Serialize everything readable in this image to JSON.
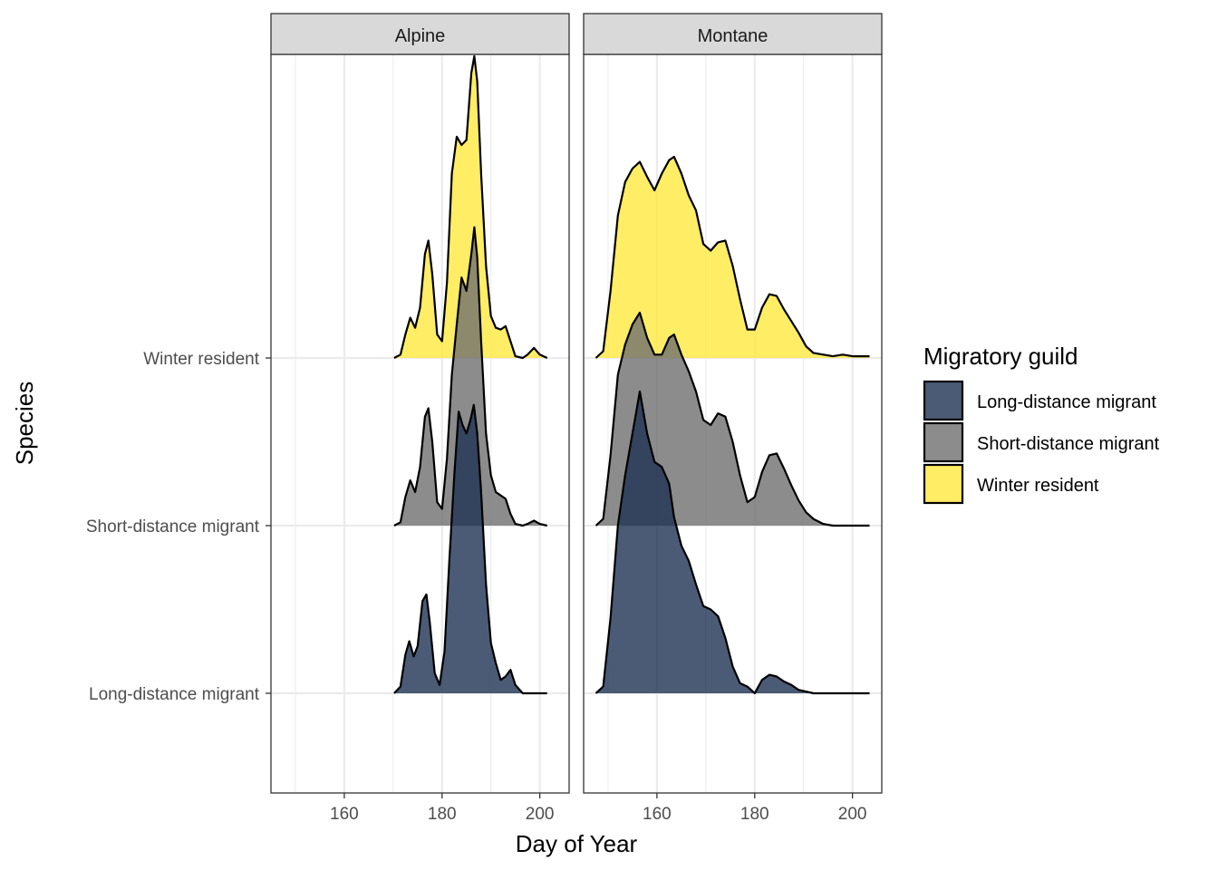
{
  "chart_data": {
    "type": "ridgeline-density",
    "xlabel": "Day of Year",
    "ylabel": "Species",
    "legend": {
      "title": "Migratory guild",
      "placement": "right",
      "entries": [
        {
          "label": "Long-distance migrant",
          "color": "#1e3252"
        },
        {
          "label": "Short-distance migrant",
          "color": "#6f6f6f"
        },
        {
          "label": "Winter resident",
          "color": "#ffe93f"
        }
      ]
    },
    "y_categories": [
      "Long-distance migrant",
      "Short-distance migrant",
      "Winter resident"
    ],
    "fill_opacity": 0.8,
    "grid": true,
    "panels": [
      {
        "strip": "Alpine",
        "xlim": [
          145,
          206
        ],
        "xticks": [
          160,
          180,
          200
        ],
        "series": [
          {
            "name": "Winter resident",
            "baseline": "Winter resident",
            "color": "#ffe93f",
            "points": [
              [
                170.2,
                0.0
              ],
              [
                171.5,
                0.02
              ],
              [
                172.5,
                0.14
              ],
              [
                173.5,
                0.24
              ],
              [
                174.5,
                0.18
              ],
              [
                175.5,
                0.3
              ],
              [
                176.5,
                0.62
              ],
              [
                177.2,
                0.7
              ],
              [
                178.0,
                0.5
              ],
              [
                179.0,
                0.14
              ],
              [
                180.0,
                0.1
              ],
              [
                181.0,
                0.45
              ],
              [
                182.0,
                1.1
              ],
              [
                183.0,
                1.32
              ],
              [
                184.0,
                1.27
              ],
              [
                185.0,
                1.3
              ],
              [
                186.0,
                1.7
              ],
              [
                186.6,
                1.8
              ],
              [
                187.2,
                1.65
              ],
              [
                188.0,
                1.1
              ],
              [
                189.0,
                0.55
              ],
              [
                190.0,
                0.25
              ],
              [
                191.0,
                0.18
              ],
              [
                192.0,
                0.17
              ],
              [
                193.0,
                0.19
              ],
              [
                194.0,
                0.1
              ],
              [
                195.0,
                0.01
              ],
              [
                196.5,
                0.0
              ],
              [
                197.5,
                0.02
              ],
              [
                198.8,
                0.06
              ],
              [
                200.0,
                0.02
              ],
              [
                201.5,
                0.0
              ]
            ]
          },
          {
            "name": "Short-distance migrant",
            "baseline": "Short-distance migrant",
            "color": "#6f6f6f",
            "points": [
              [
                170.2,
                0.0
              ],
              [
                171.5,
                0.02
              ],
              [
                172.5,
                0.17
              ],
              [
                173.5,
                0.27
              ],
              [
                174.5,
                0.2
              ],
              [
                175.5,
                0.35
              ],
              [
                176.5,
                0.65
              ],
              [
                177.2,
                0.7
              ],
              [
                178.0,
                0.5
              ],
              [
                179.0,
                0.14
              ],
              [
                180.0,
                0.1
              ],
              [
                181.0,
                0.4
              ],
              [
                182.0,
                0.9
              ],
              [
                183.0,
                1.2
              ],
              [
                184.0,
                1.48
              ],
              [
                185.0,
                1.4
              ],
              [
                186.0,
                1.62
              ],
              [
                186.6,
                1.78
              ],
              [
                187.2,
                1.6
              ],
              [
                188.0,
                1.1
              ],
              [
                189.0,
                0.55
              ],
              [
                190.0,
                0.3
              ],
              [
                191.0,
                0.2
              ],
              [
                192.0,
                0.18
              ],
              [
                193.0,
                0.16
              ],
              [
                194.0,
                0.07
              ],
              [
                195.0,
                0.01
              ],
              [
                196.5,
                0.0
              ],
              [
                197.5,
                0.01
              ],
              [
                198.8,
                0.03
              ],
              [
                200.0,
                0.01
              ],
              [
                201.5,
                0.0
              ]
            ]
          },
          {
            "name": "Long-distance migrant",
            "baseline": "Long-distance migrant",
            "color": "#1e3252",
            "points": [
              [
                170.2,
                0.0
              ],
              [
                171.5,
                0.04
              ],
              [
                172.5,
                0.23
              ],
              [
                173.3,
                0.31
              ],
              [
                174.2,
                0.22
              ],
              [
                175.0,
                0.28
              ],
              [
                176.0,
                0.55
              ],
              [
                176.8,
                0.59
              ],
              [
                177.5,
                0.42
              ],
              [
                178.5,
                0.12
              ],
              [
                179.5,
                0.05
              ],
              [
                180.5,
                0.25
              ],
              [
                181.5,
                0.8
              ],
              [
                182.5,
                1.3
              ],
              [
                183.4,
                1.68
              ],
              [
                184.2,
                1.6
              ],
              [
                185.0,
                1.55
              ],
              [
                185.8,
                1.63
              ],
              [
                186.5,
                1.72
              ],
              [
                187.2,
                1.55
              ],
              [
                188.0,
                1.2
              ],
              [
                189.0,
                0.65
              ],
              [
                190.0,
                0.3
              ],
              [
                191.0,
                0.18
              ],
              [
                192.0,
                0.08
              ],
              [
                193.0,
                0.1
              ],
              [
                194.0,
                0.14
              ],
              [
                195.0,
                0.05
              ],
              [
                196.5,
                0.0
              ],
              [
                201.5,
                0.0
              ]
            ]
          }
        ]
      },
      {
        "strip": "Montane",
        "xlim": [
          145,
          206
        ],
        "xticks": [
          160,
          180,
          200
        ],
        "series": [
          {
            "name": "Winter resident",
            "baseline": "Winter resident",
            "color": "#ffe93f",
            "points": [
              [
                147.5,
                0.0
              ],
              [
                149.0,
                0.04
              ],
              [
                150.5,
                0.4
              ],
              [
                152.0,
                0.85
              ],
              [
                153.5,
                1.05
              ],
              [
                155.0,
                1.13
              ],
              [
                156.5,
                1.17
              ],
              [
                158.0,
                1.08
              ],
              [
                159.5,
                1.0
              ],
              [
                161.0,
                1.1
              ],
              [
                162.5,
                1.18
              ],
              [
                163.5,
                1.2
              ],
              [
                165.0,
                1.1
              ],
              [
                166.5,
                0.97
              ],
              [
                168.0,
                0.88
              ],
              [
                169.5,
                0.68
              ],
              [
                171.0,
                0.64
              ],
              [
                172.5,
                0.69
              ],
              [
                174.0,
                0.7
              ],
              [
                175.5,
                0.55
              ],
              [
                177.0,
                0.35
              ],
              [
                178.5,
                0.17
              ],
              [
                180.0,
                0.17
              ],
              [
                181.5,
                0.3
              ],
              [
                183.0,
                0.38
              ],
              [
                184.5,
                0.37
              ],
              [
                186.0,
                0.29
              ],
              [
                187.5,
                0.22
              ],
              [
                189.0,
                0.15
              ],
              [
                190.5,
                0.07
              ],
              [
                192.0,
                0.03
              ],
              [
                194.0,
                0.02
              ],
              [
                196.0,
                0.01
              ],
              [
                198.0,
                0.02
              ],
              [
                200.0,
                0.01
              ],
              [
                203.5,
                0.01
              ]
            ]
          },
          {
            "name": "Short-distance migrant",
            "baseline": "Short-distance migrant",
            "color": "#6f6f6f",
            "points": [
              [
                147.5,
                0.0
              ],
              [
                149.0,
                0.04
              ],
              [
                150.5,
                0.42
              ],
              [
                152.0,
                0.9
              ],
              [
                153.5,
                1.08
              ],
              [
                155.0,
                1.2
              ],
              [
                156.5,
                1.27
              ],
              [
                158.0,
                1.12
              ],
              [
                159.5,
                1.02
              ],
              [
                161.0,
                1.02
              ],
              [
                162.5,
                1.12
              ],
              [
                163.5,
                1.14
              ],
              [
                165.0,
                1.02
              ],
              [
                166.5,
                0.92
              ],
              [
                168.0,
                0.8
              ],
              [
                169.5,
                0.63
              ],
              [
                171.0,
                0.6
              ],
              [
                172.5,
                0.67
              ],
              [
                174.0,
                0.65
              ],
              [
                175.5,
                0.5
              ],
              [
                177.0,
                0.3
              ],
              [
                178.5,
                0.14
              ],
              [
                180.0,
                0.17
              ],
              [
                181.5,
                0.32
              ],
              [
                183.0,
                0.42
              ],
              [
                184.5,
                0.43
              ],
              [
                186.0,
                0.34
              ],
              [
                187.5,
                0.24
              ],
              [
                189.0,
                0.15
              ],
              [
                190.5,
                0.08
              ],
              [
                192.0,
                0.04
              ],
              [
                194.0,
                0.01
              ],
              [
                196.0,
                0.0
              ],
              [
                203.5,
                0.0
              ]
            ]
          },
          {
            "name": "Long-distance migrant",
            "baseline": "Long-distance migrant",
            "color": "#1e3252",
            "points": [
              [
                147.5,
                0.0
              ],
              [
                149.0,
                0.04
              ],
              [
                150.5,
                0.45
              ],
              [
                152.0,
                1.0
              ],
              [
                153.5,
                1.3
              ],
              [
                155.0,
                1.55
              ],
              [
                156.5,
                1.8
              ],
              [
                158.0,
                1.55
              ],
              [
                159.5,
                1.38
              ],
              [
                161.0,
                1.35
              ],
              [
                162.5,
                1.25
              ],
              [
                163.5,
                1.05
              ],
              [
                165.0,
                0.88
              ],
              [
                166.5,
                0.79
              ],
              [
                168.0,
                0.65
              ],
              [
                169.5,
                0.52
              ],
              [
                171.0,
                0.5
              ],
              [
                172.5,
                0.46
              ],
              [
                174.0,
                0.33
              ],
              [
                175.5,
                0.16
              ],
              [
                177.0,
                0.06
              ],
              [
                178.5,
                0.04
              ],
              [
                180.0,
                0.0
              ],
              [
                181.5,
                0.08
              ],
              [
                183.0,
                0.11
              ],
              [
                184.5,
                0.1
              ],
              [
                186.0,
                0.07
              ],
              [
                187.5,
                0.05
              ],
              [
                189.0,
                0.02
              ],
              [
                190.5,
                0.01
              ],
              [
                192.0,
                0.0
              ],
              [
                203.5,
                0.0
              ]
            ]
          }
        ]
      }
    ]
  }
}
